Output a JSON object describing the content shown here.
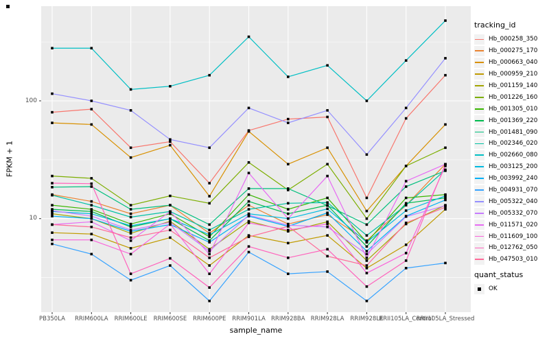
{
  "figure": {
    "x_axis_title": "sample_name",
    "y_axis_title": "FPKM + 1"
  },
  "legend": {
    "tracking_title": "tracking_id",
    "quant_title": "quant_status",
    "quant_items": [
      {
        "label": "OK"
      }
    ]
  },
  "chart_data": {
    "type": "line",
    "title": "",
    "xlabel": "sample_name",
    "ylabel": "FPKM + 1",
    "y_scale": "log10",
    "y_tick_labels": [
      "100",
      "10"
    ],
    "y_tick_values": [
      100,
      10
    ],
    "y_minor_values": [
      316.2,
      31.62,
      3.162
    ],
    "ylim_log": [
      0.2,
      2.8
    ],
    "grid": true,
    "panel_bg": "#EBEBEB",
    "grid_color": "#FFFFFF",
    "tick_color": "#333333",
    "marker": "black-square",
    "marker_color": "#000000",
    "legend_position": "right",
    "categories": [
      "PB350LA",
      "RRIM600LA",
      "RRIM600LE",
      "RRIM600SE",
      "RRIM600PE",
      "RRIM901LA",
      "RRIM928BA",
      "RRIM928LA",
      "RRIM928LE",
      "RRII105LA_Control",
      "RRII105LA_Stressed"
    ],
    "series": [
      {
        "name": "Hb_000258_350",
        "color": "#F8766D",
        "values": [
          80,
          85,
          40,
          45,
          20,
          56,
          70,
          73,
          15,
          71,
          165
        ]
      },
      {
        "name": "Hb_000275_170",
        "color": "#EA8331",
        "values": [
          16,
          14,
          11,
          13,
          7.5,
          13,
          9,
          10.8,
          6.5,
          13,
          29
        ]
      },
      {
        "name": "Hb_000663_040",
        "color": "#D89000",
        "values": [
          65,
          63,
          33,
          42,
          15.5,
          55,
          29,
          40,
          11.6,
          28,
          63
        ]
      },
      {
        "name": "Hb_000959_210",
        "color": "#C09B00",
        "values": [
          7.6,
          7.4,
          5.6,
          6.9,
          4.0,
          7.2,
          6.2,
          7.2,
          3.8,
          6.0,
          12
        ]
      },
      {
        "name": "Hb_001159_140",
        "color": "#A3A500",
        "values": [
          11,
          10,
          7.5,
          9.5,
          5.5,
          9.5,
          7.8,
          9.4,
          4.4,
          9.0,
          13
        ]
      },
      {
        "name": "Hb_001226_160",
        "color": "#7CAE00",
        "values": [
          23,
          22,
          13,
          15.6,
          13.5,
          30,
          17.5,
          29,
          10,
          28,
          40
        ]
      },
      {
        "name": "Hb_001305_010",
        "color": "#39B600",
        "values": [
          13,
          12,
          9,
          11,
          7,
          16,
          12,
          15,
          6.3,
          15,
          16
        ]
      },
      {
        "name": "Hb_001369_220",
        "color": "#00BB4E",
        "values": [
          12,
          11.5,
          8.5,
          10,
          6.5,
          14,
          11,
          13,
          5.8,
          13.5,
          15
        ]
      },
      {
        "name": "Hb_001481_090",
        "color": "#00BF7D",
        "values": [
          18.5,
          18.7,
          12,
          13,
          8.9,
          18,
          18,
          12.9,
          8.9,
          18.7,
          25.5
        ]
      },
      {
        "name": "Hb_002346_020",
        "color": "#00C1A3",
        "values": [
          15.8,
          13,
          10.3,
          11.5,
          8,
          12,
          13.5,
          13.7,
          7.2,
          13,
          26
        ]
      },
      {
        "name": "Hb_002660_080",
        "color": "#00BFC4",
        "values": [
          280,
          280,
          125,
          133,
          165,
          350,
          160,
          200,
          100,
          220,
          480
        ]
      },
      {
        "name": "Hb_003125_200",
        "color": "#00BAE0",
        "values": [
          11.5,
          11,
          8.7,
          10,
          7.3,
          11,
          10,
          12.1,
          6.3,
          11.7,
          15.6
        ]
      },
      {
        "name": "Hb_003992_240",
        "color": "#00B0F6",
        "values": [
          10.5,
          10,
          7.8,
          8.9,
          6.3,
          10.5,
          8.6,
          11.2,
          5.3,
          10.5,
          14.4
        ]
      },
      {
        "name": "Hb_004931_070",
        "color": "#35A2FF",
        "values": [
          6.1,
          5.0,
          3.0,
          4.0,
          2.0,
          5.2,
          3.4,
          3.55,
          2.0,
          3.8,
          4.2
        ]
      },
      {
        "name": "Hb_005322_040",
        "color": "#9590FF",
        "values": [
          115,
          100,
          83,
          47,
          40,
          87,
          65,
          83,
          35,
          87,
          230
        ]
      },
      {
        "name": "Hb_005332_070",
        "color": "#C77CFF",
        "values": [
          11.7,
          10.5,
          8.0,
          9.3,
          5.3,
          10.7,
          8.8,
          8.5,
          5.0,
          10.4,
          12.9
        ]
      },
      {
        "name": "Hb_011571_020",
        "color": "#E76BF3",
        "values": [
          8.9,
          9.4,
          6.5,
          11.5,
          5.0,
          24.4,
          10,
          23,
          4.65,
          20.8,
          29
        ]
      },
      {
        "name": "Hb_011609_100",
        "color": "#FA62DB",
        "values": [
          6.6,
          6.6,
          5.0,
          9.0,
          3.4,
          9.2,
          8.0,
          9.0,
          3.45,
          5.1,
          28
        ]
      },
      {
        "name": "Hb_012762_050",
        "color": "#FF62BC",
        "values": [
          20,
          19.8,
          3.4,
          4.6,
          2.6,
          5.8,
          4.65,
          5.5,
          2.65,
          4.4,
          29
        ]
      },
      {
        "name": "Hb_047503_010",
        "color": "#FF6A98",
        "values": [
          8.9,
          8.5,
          6.9,
          8.0,
          4.65,
          7.0,
          8.6,
          4.8,
          4.0,
          9.2,
          12.5
        ]
      }
    ]
  }
}
